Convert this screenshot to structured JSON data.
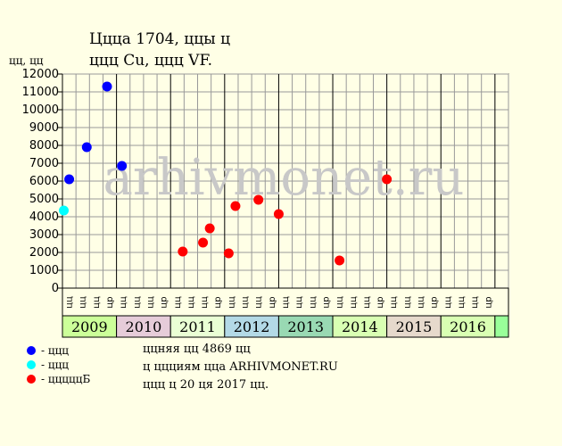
{
  "title_line1": "Ццца 1704, ццы ц",
  "title_line2": "ццц Cu, ццц VF.",
  "watermark": "arhivmonet.ru",
  "legend": [
    {
      "label": "- ццц",
      "color": "#0000ff"
    },
    {
      "label": "- ццц",
      "color": "#00ffff"
    },
    {
      "label": "- цццццБ",
      "color": "#ff0000"
    }
  ],
  "notes": [
    "ццняя цц 4869 цц",
    "ц ццциям цца ARHIVMONET.RU",
    "ццц ц 20 ця 2017 цц."
  ],
  "chart_data": {
    "type": "scatter",
    "ylabel": "цц, цц",
    "ylim": [
      0,
      12000
    ],
    "yticks": [
      0,
      1000,
      2000,
      3000,
      4000,
      5000,
      6000,
      7000,
      8000,
      9000,
      10000,
      11000,
      12000
    ],
    "grid": true,
    "month_labels": [
      "цц",
      "цц",
      "цц",
      "цр",
      "цц",
      "цц",
      "цц",
      "цр",
      "цц",
      "цц",
      "цц",
      "цр",
      "цц",
      "цц",
      "цц",
      "цр",
      "цц",
      "цц",
      "цц",
      "цр",
      "цц",
      "цц",
      "цц",
      "цр",
      "цц",
      "цц",
      "цц",
      "цр",
      "цц",
      "цц",
      "цц",
      "цр"
    ],
    "years": [
      {
        "label": "2009",
        "color": "#ccff99"
      },
      {
        "label": "2010",
        "color": "#e6ccd9"
      },
      {
        "label": "2011",
        "color": "#eaffd5"
      },
      {
        "label": "2012",
        "color": "#b3d9e6"
      },
      {
        "label": "2013",
        "color": "#99d9b3"
      },
      {
        "label": "2014",
        "color": "#d9ffb3"
      },
      {
        "label": "2015",
        "color": "#e6d9cc"
      },
      {
        "label": "2016",
        "color": "#d9ffb3"
      },
      {
        "label": "",
        "color": "#99ff99"
      }
    ],
    "series": [
      {
        "name": "- ццц",
        "color": "#0000ff",
        "points": [
          {
            "q": 0.5,
            "y": 6100
          },
          {
            "q": 1.8,
            "y": 7900
          },
          {
            "q": 3.3,
            "y": 11300
          },
          {
            "q": 4.4,
            "y": 6850
          }
        ]
      },
      {
        "name": "- ццц",
        "color": "#00ffff",
        "points": [
          {
            "q": 0.1,
            "y": 4350
          }
        ]
      },
      {
        "name": "- цццццБ",
        "color": "#ff0000",
        "points": [
          {
            "q": 8.9,
            "y": 2050
          },
          {
            "q": 10.4,
            "y": 2550
          },
          {
            "q": 10.9,
            "y": 3350
          },
          {
            "q": 12.3,
            "y": 1950
          },
          {
            "q": 12.8,
            "y": 4600
          },
          {
            "q": 14.5,
            "y": 4950
          },
          {
            "q": 16.0,
            "y": 4150
          },
          {
            "q": 20.5,
            "y": 1550
          },
          {
            "q": 24.0,
            "y": 6100
          }
        ]
      }
    ]
  }
}
